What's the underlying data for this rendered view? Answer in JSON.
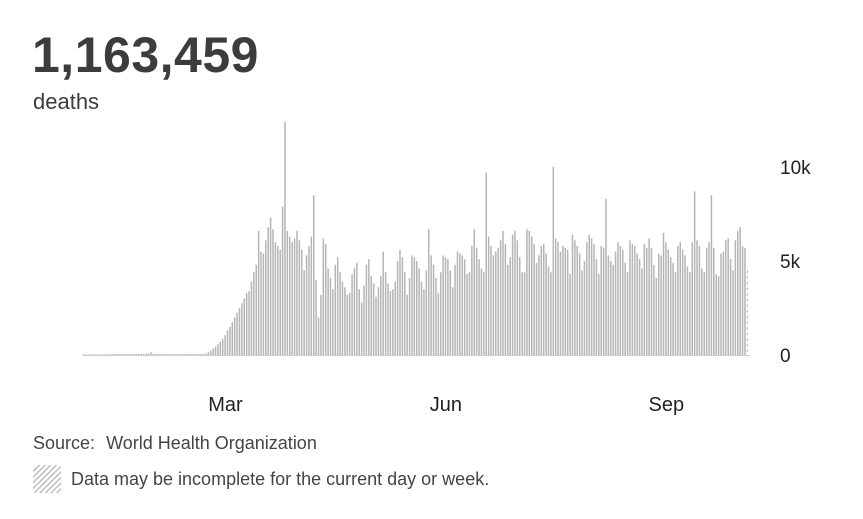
{
  "headline": {
    "total": "1,163,459",
    "unit": "deaths"
  },
  "chart_data": {
    "type": "bar",
    "ylim": [
      0,
      12500
    ],
    "y_ticks": [
      {
        "value": 0,
        "label": "0"
      },
      {
        "value": 5000,
        "label": "5k"
      },
      {
        "value": 10000,
        "label": "10k"
      }
    ],
    "x_ticks": [
      {
        "index": 59,
        "label": "Mar"
      },
      {
        "index": 151,
        "label": "Jun"
      },
      {
        "index": 243,
        "label": "Sep"
      }
    ],
    "bar_color": "#b5b5b5",
    "incomplete_from_index": 277,
    "values": [
      0,
      0,
      0,
      0,
      0,
      0,
      0,
      0,
      0,
      0,
      0,
      10,
      20,
      20,
      20,
      30,
      30,
      40,
      40,
      40,
      40,
      50,
      60,
      60,
      60,
      60,
      70,
      80,
      150,
      60,
      60,
      60,
      50,
      60,
      50,
      50,
      50,
      50,
      50,
      60,
      40,
      40,
      40,
      40,
      40,
      40,
      40,
      40,
      40,
      40,
      50,
      80,
      150,
      240,
      350,
      460,
      580,
      700,
      850,
      1050,
      1300,
      1500,
      1750,
      2000,
      2250,
      2500,
      2750,
      3000,
      3300,
      3400,
      3900,
      4400,
      4800,
      6600,
      5500,
      5400,
      6100,
      6800,
      7300,
      6700,
      6000,
      5800,
      5600,
      7900,
      12400,
      6600,
      6300,
      6000,
      6200,
      6600,
      6100,
      5600,
      4500,
      5300,
      5800,
      6300,
      8500,
      4000,
      2000,
      3200,
      6200,
      5900,
      4600,
      4100,
      3500,
      4800,
      5200,
      4400,
      3900,
      3600,
      3200,
      3300,
      4300,
      4600,
      4900,
      3500,
      2800,
      3700,
      4800,
      5100,
      4200,
      3800,
      3100,
      3600,
      4200,
      5500,
      4400,
      3800,
      3400,
      3500,
      3900,
      5000,
      5600,
      5200,
      4400,
      3200,
      4100,
      5300,
      5200,
      5000,
      4600,
      3900,
      3500,
      4500,
      6700,
      5300,
      4800,
      4100,
      3300,
      4400,
      5300,
      5200,
      5100,
      4500,
      3600,
      4800,
      5500,
      5400,
      5300,
      5100,
      4300,
      4400,
      5800,
      6700,
      5700,
      5100,
      4600,
      4400,
      9700,
      6300,
      5800,
      5300,
      5500,
      5700,
      6100,
      6600,
      5900,
      4800,
      5200,
      6400,
      6600,
      6100,
      5200,
      4400,
      4400,
      6700,
      6600,
      6300,
      5900,
      4900,
      5300,
      5800,
      5900,
      5400,
      4700,
      4400,
      10000,
      6200,
      6000,
      5500,
      5800,
      5700,
      5600,
      4300,
      6400,
      6100,
      5800,
      5400,
      4500,
      5000,
      6000,
      6400,
      6200,
      5900,
      5100,
      4300,
      5800,
      5700,
      8300,
      5300,
      5000,
      4800,
      5500,
      6000,
      5800,
      5600,
      4900,
      4400,
      6100,
      5900,
      5800,
      5400,
      5100,
      4600,
      5900,
      5700,
      6200,
      5700,
      4800,
      4100,
      5400,
      5300,
      6500,
      6000,
      5600,
      5200,
      4900,
      4400,
      5800,
      6000,
      5600,
      5300,
      4700,
      4400,
      6000,
      8700,
      6100,
      5800,
      4600,
      4400,
      5700,
      6000,
      8500,
      5700,
      4300,
      4200,
      5400,
      5500,
      6100,
      6200,
      5100,
      4500,
      6100,
      6600,
      6800,
      5800,
      5700,
      4600
    ]
  },
  "source": {
    "label": "Source:",
    "name": "World Health Organization"
  },
  "note": "Data may be incomplete for the current day or week."
}
